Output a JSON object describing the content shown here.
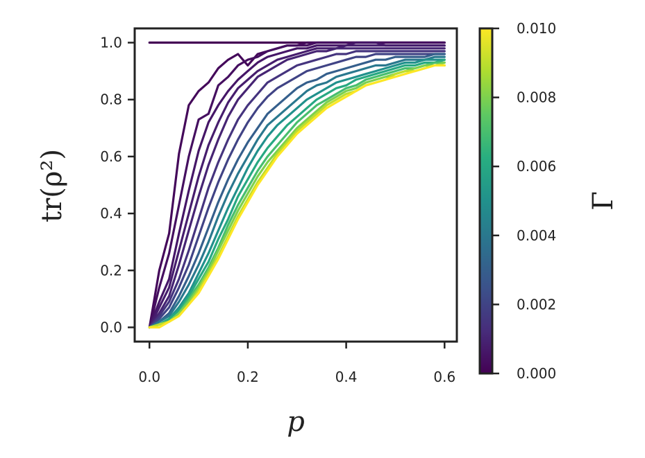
{
  "chart_data": {
    "type": "line",
    "title": "",
    "xlabel": "p",
    "ylabel": "tr(ρ²)",
    "xlim": [
      -0.03,
      0.625
    ],
    "ylim": [
      -0.05,
      1.05
    ],
    "xticks": [
      "0.0",
      "0.2",
      "0.4",
      "0.6"
    ],
    "yticks": [
      "0.0",
      "0.2",
      "0.4",
      "0.6",
      "0.8",
      "1.0"
    ],
    "grid": false,
    "legend": "none",
    "colormap": "viridis",
    "colorbar": {
      "label": "Γ",
      "range": [
        0.0,
        0.01
      ],
      "ticks": [
        "0.000",
        "0.002",
        "0.004",
        "0.006",
        "0.008",
        "0.010"
      ]
    },
    "x": [
      0.0,
      0.02,
      0.04,
      0.06,
      0.08,
      0.1,
      0.12,
      0.14,
      0.16,
      0.18,
      0.2,
      0.22,
      0.24,
      0.26,
      0.28,
      0.3,
      0.32,
      0.34,
      0.36,
      0.38,
      0.4,
      0.42,
      0.44,
      0.46,
      0.48,
      0.5,
      0.52,
      0.54,
      0.56,
      0.58,
      0.6
    ],
    "series": [
      {
        "gamma": 0.0,
        "values": [
          1.0,
          1.0,
          1.0,
          1.0,
          1.0,
          1.0,
          1.0,
          1.0,
          1.0,
          1.0,
          1.0,
          1.0,
          1.0,
          1.0,
          1.0,
          1.0,
          1.0,
          1.0,
          1.0,
          1.0,
          1.0,
          1.0,
          1.0,
          1.0,
          1.0,
          1.0,
          1.0,
          1.0,
          1.0,
          1.0,
          1.0
        ]
      },
      {
        "gamma": 0.0002,
        "values": [
          0.0,
          0.2,
          0.33,
          0.61,
          0.78,
          0.83,
          0.86,
          0.91,
          0.94,
          0.96,
          0.92,
          0.96,
          0.97,
          0.98,
          0.99,
          0.99,
          1.0,
          1.0,
          1.0,
          1.0,
          1.0,
          1.0,
          1.0,
          1.0,
          1.0,
          1.0,
          1.0,
          1.0,
          1.0,
          1.0,
          1.0
        ]
      },
      {
        "gamma": 0.0004,
        "values": [
          0.0,
          0.14,
          0.26,
          0.43,
          0.6,
          0.73,
          0.75,
          0.85,
          0.88,
          0.92,
          0.94,
          0.95,
          0.97,
          0.98,
          0.99,
          0.99,
          0.99,
          1.0,
          1.0,
          1.0,
          1.0,
          1.0,
          1.0,
          1.0,
          1.0,
          1.0,
          1.0,
          1.0,
          1.0,
          1.0,
          1.0
        ]
      },
      {
        "gamma": 0.0006,
        "values": [
          0.0,
          0.09,
          0.17,
          0.33,
          0.48,
          0.62,
          0.72,
          0.78,
          0.83,
          0.87,
          0.9,
          0.93,
          0.95,
          0.96,
          0.97,
          0.98,
          0.98,
          0.99,
          0.99,
          0.99,
          0.99,
          1.0,
          1.0,
          1.0,
          0.99,
          0.99,
          0.99,
          0.99,
          0.99,
          0.99,
          0.99
        ]
      },
      {
        "gamma": 0.0008,
        "values": [
          0.0,
          0.07,
          0.14,
          0.27,
          0.4,
          0.53,
          0.64,
          0.72,
          0.79,
          0.84,
          0.87,
          0.9,
          0.92,
          0.94,
          0.95,
          0.96,
          0.97,
          0.98,
          0.98,
          0.98,
          0.99,
          0.99,
          0.99,
          0.99,
          0.99,
          0.99,
          0.99,
          0.99,
          0.99,
          0.99,
          0.99
        ]
      },
      {
        "gamma": 0.001,
        "values": [
          0.0,
          0.05,
          0.11,
          0.22,
          0.34,
          0.46,
          0.57,
          0.66,
          0.74,
          0.8,
          0.84,
          0.88,
          0.9,
          0.92,
          0.94,
          0.95,
          0.96,
          0.97,
          0.97,
          0.98,
          0.98,
          0.98,
          0.98,
          0.98,
          0.98,
          0.98,
          0.98,
          0.98,
          0.98,
          0.98,
          0.98
        ]
      },
      {
        "gamma": 0.0015,
        "values": [
          0.0,
          0.04,
          0.09,
          0.17,
          0.27,
          0.38,
          0.49,
          0.58,
          0.66,
          0.73,
          0.78,
          0.82,
          0.86,
          0.88,
          0.9,
          0.92,
          0.93,
          0.94,
          0.95,
          0.96,
          0.96,
          0.97,
          0.97,
          0.97,
          0.97,
          0.97,
          0.97,
          0.97,
          0.97,
          0.97,
          0.97
        ]
      },
      {
        "gamma": 0.002,
        "values": [
          0.0,
          0.03,
          0.07,
          0.14,
          0.22,
          0.32,
          0.42,
          0.51,
          0.59,
          0.66,
          0.72,
          0.77,
          0.81,
          0.84,
          0.86,
          0.88,
          0.9,
          0.91,
          0.92,
          0.93,
          0.94,
          0.95,
          0.95,
          0.96,
          0.96,
          0.96,
          0.96,
          0.96,
          0.96,
          0.96,
          0.96
        ]
      },
      {
        "gamma": 0.003,
        "values": [
          0.0,
          0.02,
          0.05,
          0.11,
          0.18,
          0.26,
          0.35,
          0.44,
          0.52,
          0.59,
          0.65,
          0.7,
          0.75,
          0.78,
          0.81,
          0.84,
          0.86,
          0.87,
          0.89,
          0.9,
          0.91,
          0.92,
          0.93,
          0.94,
          0.94,
          0.95,
          0.95,
          0.95,
          0.95,
          0.96,
          0.96
        ]
      },
      {
        "gamma": 0.004,
        "values": [
          0.0,
          0.02,
          0.04,
          0.09,
          0.15,
          0.22,
          0.3,
          0.39,
          0.47,
          0.54,
          0.6,
          0.66,
          0.71,
          0.74,
          0.77,
          0.8,
          0.83,
          0.85,
          0.86,
          0.88,
          0.89,
          0.9,
          0.91,
          0.92,
          0.92,
          0.93,
          0.94,
          0.94,
          0.94,
          0.95,
          0.95
        ]
      },
      {
        "gamma": 0.005,
        "values": [
          0.0,
          0.01,
          0.03,
          0.07,
          0.12,
          0.19,
          0.26,
          0.34,
          0.42,
          0.49,
          0.56,
          0.62,
          0.67,
          0.71,
          0.74,
          0.77,
          0.8,
          0.82,
          0.84,
          0.86,
          0.87,
          0.88,
          0.89,
          0.9,
          0.91,
          0.92,
          0.93,
          0.93,
          0.94,
          0.94,
          0.94
        ]
      },
      {
        "gamma": 0.006,
        "values": [
          0.0,
          0.01,
          0.03,
          0.06,
          0.11,
          0.17,
          0.23,
          0.31,
          0.38,
          0.46,
          0.52,
          0.58,
          0.63,
          0.67,
          0.71,
          0.74,
          0.77,
          0.8,
          0.82,
          0.84,
          0.85,
          0.87,
          0.88,
          0.89,
          0.9,
          0.91,
          0.92,
          0.92,
          0.93,
          0.93,
          0.94
        ]
      },
      {
        "gamma": 0.007,
        "values": [
          0.0,
          0.01,
          0.02,
          0.05,
          0.1,
          0.15,
          0.21,
          0.28,
          0.36,
          0.43,
          0.49,
          0.55,
          0.6,
          0.64,
          0.68,
          0.72,
          0.75,
          0.78,
          0.8,
          0.82,
          0.84,
          0.85,
          0.87,
          0.88,
          0.89,
          0.9,
          0.91,
          0.91,
          0.92,
          0.93,
          0.93
        ]
      },
      {
        "gamma": 0.008,
        "values": [
          0.0,
          0.01,
          0.02,
          0.05,
          0.09,
          0.14,
          0.2,
          0.27,
          0.34,
          0.41,
          0.47,
          0.53,
          0.58,
          0.62,
          0.66,
          0.7,
          0.73,
          0.76,
          0.79,
          0.81,
          0.83,
          0.84,
          0.86,
          0.87,
          0.88,
          0.89,
          0.9,
          0.91,
          0.92,
          0.92,
          0.93
        ]
      },
      {
        "gamma": 0.009,
        "values": [
          0.0,
          0.01,
          0.02,
          0.04,
          0.08,
          0.13,
          0.19,
          0.25,
          0.32,
          0.39,
          0.45,
          0.51,
          0.56,
          0.61,
          0.65,
          0.69,
          0.72,
          0.75,
          0.78,
          0.8,
          0.82,
          0.83,
          0.85,
          0.86,
          0.87,
          0.89,
          0.9,
          0.9,
          0.91,
          0.92,
          0.92
        ]
      },
      {
        "gamma": 0.01,
        "values": [
          0.0,
          0.0,
          0.02,
          0.04,
          0.08,
          0.12,
          0.18,
          0.24,
          0.31,
          0.38,
          0.44,
          0.5,
          0.55,
          0.6,
          0.64,
          0.68,
          0.71,
          0.74,
          0.77,
          0.79,
          0.81,
          0.83,
          0.85,
          0.86,
          0.87,
          0.88,
          0.89,
          0.9,
          0.91,
          0.92,
          0.92
        ]
      }
    ]
  }
}
